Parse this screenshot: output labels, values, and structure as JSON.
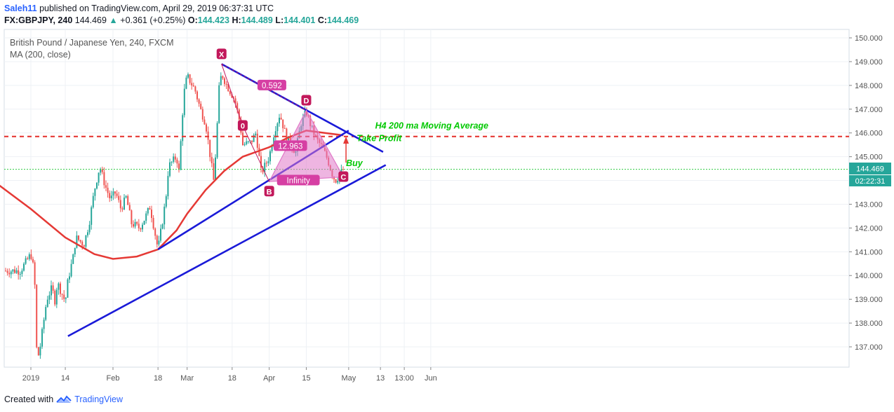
{
  "header": {
    "username": "Saleh11",
    "published_text": "published on TradingView.com, April 29, 2019 06:37:31 UTC",
    "symbol": "FX:GBPJPY, 240",
    "price": "144.469",
    "change_arrow": "▲",
    "change": "+0.361 (+0.25%)",
    "o_label": "O:",
    "o_value": "144.423",
    "h_label": "H:",
    "h_value": "144.489",
    "l_label": "L:",
    "l_value": "144.401",
    "c_label": "C:",
    "c_value": "144.469"
  },
  "legend": {
    "instrument": "British Pound / Japanese Yen, 240, FXCM",
    "indicator": "MA (200, close)"
  },
  "price_tag": {
    "price": "144.469",
    "countdown": "02:22:31"
  },
  "footer": {
    "created_with": "Created with",
    "brand": "TradingView"
  },
  "colors": {
    "up_candle": "#26a69a",
    "down_candle": "#ef5350",
    "ma_line": "#e53935",
    "trend_lines": "#1a1ad8",
    "pattern_fill": "#e079c8",
    "pattern_point": "#c2185b",
    "annotation_green": "#00c800",
    "resistance_dash": "#e53935"
  },
  "chart_data": {
    "type": "candlestick",
    "title": "British Pound / Japanese Yen, 240, FXCM",
    "ylim": [
      136.3,
      150.3
    ],
    "y_ticks": [
      137.0,
      138.0,
      139.0,
      140.0,
      141.0,
      142.0,
      143.0,
      144.0,
      145.0,
      146.0,
      147.0,
      148.0,
      149.0,
      150.0
    ],
    "y_tick_labels": [
      "137.000",
      "138.000",
      "139.000",
      "140.000",
      "141.000",
      "142.000",
      "143.000",
      "144.000",
      "145.000",
      "146.000",
      "147.000",
      "148.000",
      "149.000",
      "150.000"
    ],
    "x_ticks": [
      {
        "label": "2019",
        "date": "2019-01-01"
      },
      {
        "label": "14",
        "date": "2019-01-14"
      },
      {
        "label": "Feb",
        "date": "2019-02-01"
      },
      {
        "label": "18",
        "date": "2019-02-18"
      },
      {
        "label": "Mar",
        "date": "2019-03-01"
      },
      {
        "label": "18",
        "date": "2019-03-18"
      },
      {
        "label": "Apr",
        "date": "2019-04-01"
      },
      {
        "label": "15",
        "date": "2019-04-15"
      },
      {
        "label": "May",
        "date": "2019-05-01"
      },
      {
        "label": "13",
        "date": "2019-05-13"
      },
      {
        "label": "13:00",
        "date": "2019-05-22"
      },
      {
        "label": "Jun",
        "date": "2019-06-01"
      }
    ],
    "price_path": [
      [
        "2018-12-28",
        140.2
      ],
      [
        "2019-01-01",
        140.9
      ],
      [
        "2019-01-02",
        140.3
      ],
      [
        "2019-01-03",
        138.8
      ],
      [
        "2019-01-03",
        137.0
      ],
      [
        "2019-01-04",
        136.6
      ],
      [
        "2019-01-07",
        139.0
      ],
      [
        "2019-01-09",
        139.5
      ],
      [
        "2019-01-10",
        138.9
      ],
      [
        "2019-01-11",
        139.7
      ],
      [
        "2019-01-14",
        138.9
      ],
      [
        "2019-01-15",
        139.8
      ],
      [
        "2019-01-17",
        140.8
      ],
      [
        "2019-01-18",
        141.6
      ],
      [
        "2019-01-21",
        141.3
      ],
      [
        "2019-01-23",
        142.2
      ],
      [
        "2019-01-25",
        143.6
      ],
      [
        "2019-01-27",
        144.6
      ],
      [
        "2019-01-29",
        143.8
      ],
      [
        "2019-01-31",
        143.2
      ],
      [
        "2019-02-02",
        143.5
      ],
      [
        "2019-02-04",
        142.8
      ],
      [
        "2019-02-06",
        143.3
      ],
      [
        "2019-02-08",
        142.2
      ],
      [
        "2019-02-11",
        142.0
      ],
      [
        "2019-02-13",
        142.4
      ],
      [
        "2019-02-15",
        142.9
      ],
      [
        "2019-02-18",
        141.1
      ],
      [
        "2019-02-20",
        142.5
      ],
      [
        "2019-02-21",
        143.3
      ],
      [
        "2019-02-22",
        144.6
      ],
      [
        "2019-02-25",
        145.0
      ],
      [
        "2019-02-26",
        144.3
      ],
      [
        "2019-02-27",
        146.5
      ],
      [
        "2019-02-28",
        147.8
      ],
      [
        "2019-03-01",
        148.4
      ],
      [
        "2019-03-04",
        147.8
      ],
      [
        "2019-03-06",
        147.0
      ],
      [
        "2019-03-08",
        146.4
      ],
      [
        "2019-03-11",
        144.0
      ],
      [
        "2019-03-12",
        145.5
      ],
      [
        "2019-03-13",
        147.8
      ],
      [
        "2019-03-14",
        148.5
      ],
      [
        "2019-03-16",
        148.0
      ],
      [
        "2019-03-19",
        147.4
      ],
      [
        "2019-03-21",
        146.4
      ],
      [
        "2019-03-22",
        145.5
      ],
      [
        "2019-03-25",
        145.6
      ],
      [
        "2019-03-27",
        146.0
      ],
      [
        "2019-03-29",
        144.3
      ],
      [
        "2019-04-01",
        145.0
      ],
      [
        "2019-04-03",
        146.1
      ],
      [
        "2019-04-05",
        146.8
      ],
      [
        "2019-04-07",
        146.0
      ],
      [
        "2019-04-09",
        145.5
      ],
      [
        "2019-04-11",
        145.2
      ],
      [
        "2019-04-13",
        146.4
      ],
      [
        "2019-04-15",
        146.9
      ],
      [
        "2019-04-17",
        146.2
      ],
      [
        "2019-04-19",
        145.7
      ],
      [
        "2019-04-21",
        145.4
      ],
      [
        "2019-04-23",
        144.9
      ],
      [
        "2019-04-25",
        144.2
      ],
      [
        "2019-04-26",
        144.0
      ],
      [
        "2019-04-28",
        144.3
      ],
      [
        "2019-04-29",
        144.469
      ]
    ],
    "series": [
      {
        "name": "MA (200, close)",
        "points": [
          [
            "2018-12-20",
            143.8
          ],
          [
            "2019-01-01",
            142.8
          ],
          [
            "2019-01-14",
            141.6
          ],
          [
            "2019-01-25",
            140.9
          ],
          [
            "2019-02-01",
            140.7
          ],
          [
            "2019-02-10",
            140.8
          ],
          [
            "2019-02-18",
            141.1
          ],
          [
            "2019-02-25",
            141.9
          ],
          [
            "2019-03-01",
            142.6
          ],
          [
            "2019-03-08",
            143.6
          ],
          [
            "2019-03-15",
            144.4
          ],
          [
            "2019-03-22",
            145.0
          ],
          [
            "2019-04-01",
            145.4
          ],
          [
            "2019-04-08",
            145.8
          ],
          [
            "2019-04-15",
            146.1
          ],
          [
            "2019-04-22",
            146.0
          ],
          [
            "2019-04-29",
            145.9
          ]
        ]
      },
      {
        "name": "Resistance level",
        "type": "hline",
        "y": 145.85
      },
      {
        "name": "Last price",
        "type": "hline",
        "y": 144.469
      }
    ],
    "trend_lines": [
      {
        "from": [
          "2019-01-15",
          137.45
        ],
        "to": [
          "2019-05-15",
          144.65
        ]
      },
      {
        "from": [
          "2019-02-18",
          141.1
        ],
        "to": [
          "2019-05-01",
          146.1
        ]
      },
      {
        "from": [
          "2019-03-14",
          148.9
        ],
        "to": [
          "2019-05-14",
          145.2
        ]
      }
    ],
    "pattern": {
      "points": [
        {
          "label": "X",
          "date": "2019-03-14",
          "price": 148.9
        },
        {
          "label": "0",
          "date": "2019-03-22",
          "price": 146.3
        },
        {
          "label": "B",
          "date": "2019-04-01",
          "price": 143.95
        },
        {
          "label": "D",
          "date": "2019-04-15",
          "price": 146.95
        },
        {
          "label": "C",
          "date": "2019-04-29",
          "price": 144.15
        }
      ],
      "ratios": [
        {
          "text": "0.592",
          "date": "2019-04-02",
          "price": 148.0
        },
        {
          "text": "12.963",
          "date": "2019-04-09",
          "price": 145.45
        },
        {
          "text": "Infinity",
          "date": "2019-04-12",
          "price": 144.0
        }
      ]
    },
    "annotations": [
      {
        "text": "H4 200 ma Moving Average",
        "date": "2019-05-11",
        "price": 146.18
      },
      {
        "text": "Take Profit",
        "date": "2019-05-04",
        "price": 145.65
      },
      {
        "text": "Buy",
        "date": "2019-04-30",
        "price": 144.6
      }
    ]
  }
}
